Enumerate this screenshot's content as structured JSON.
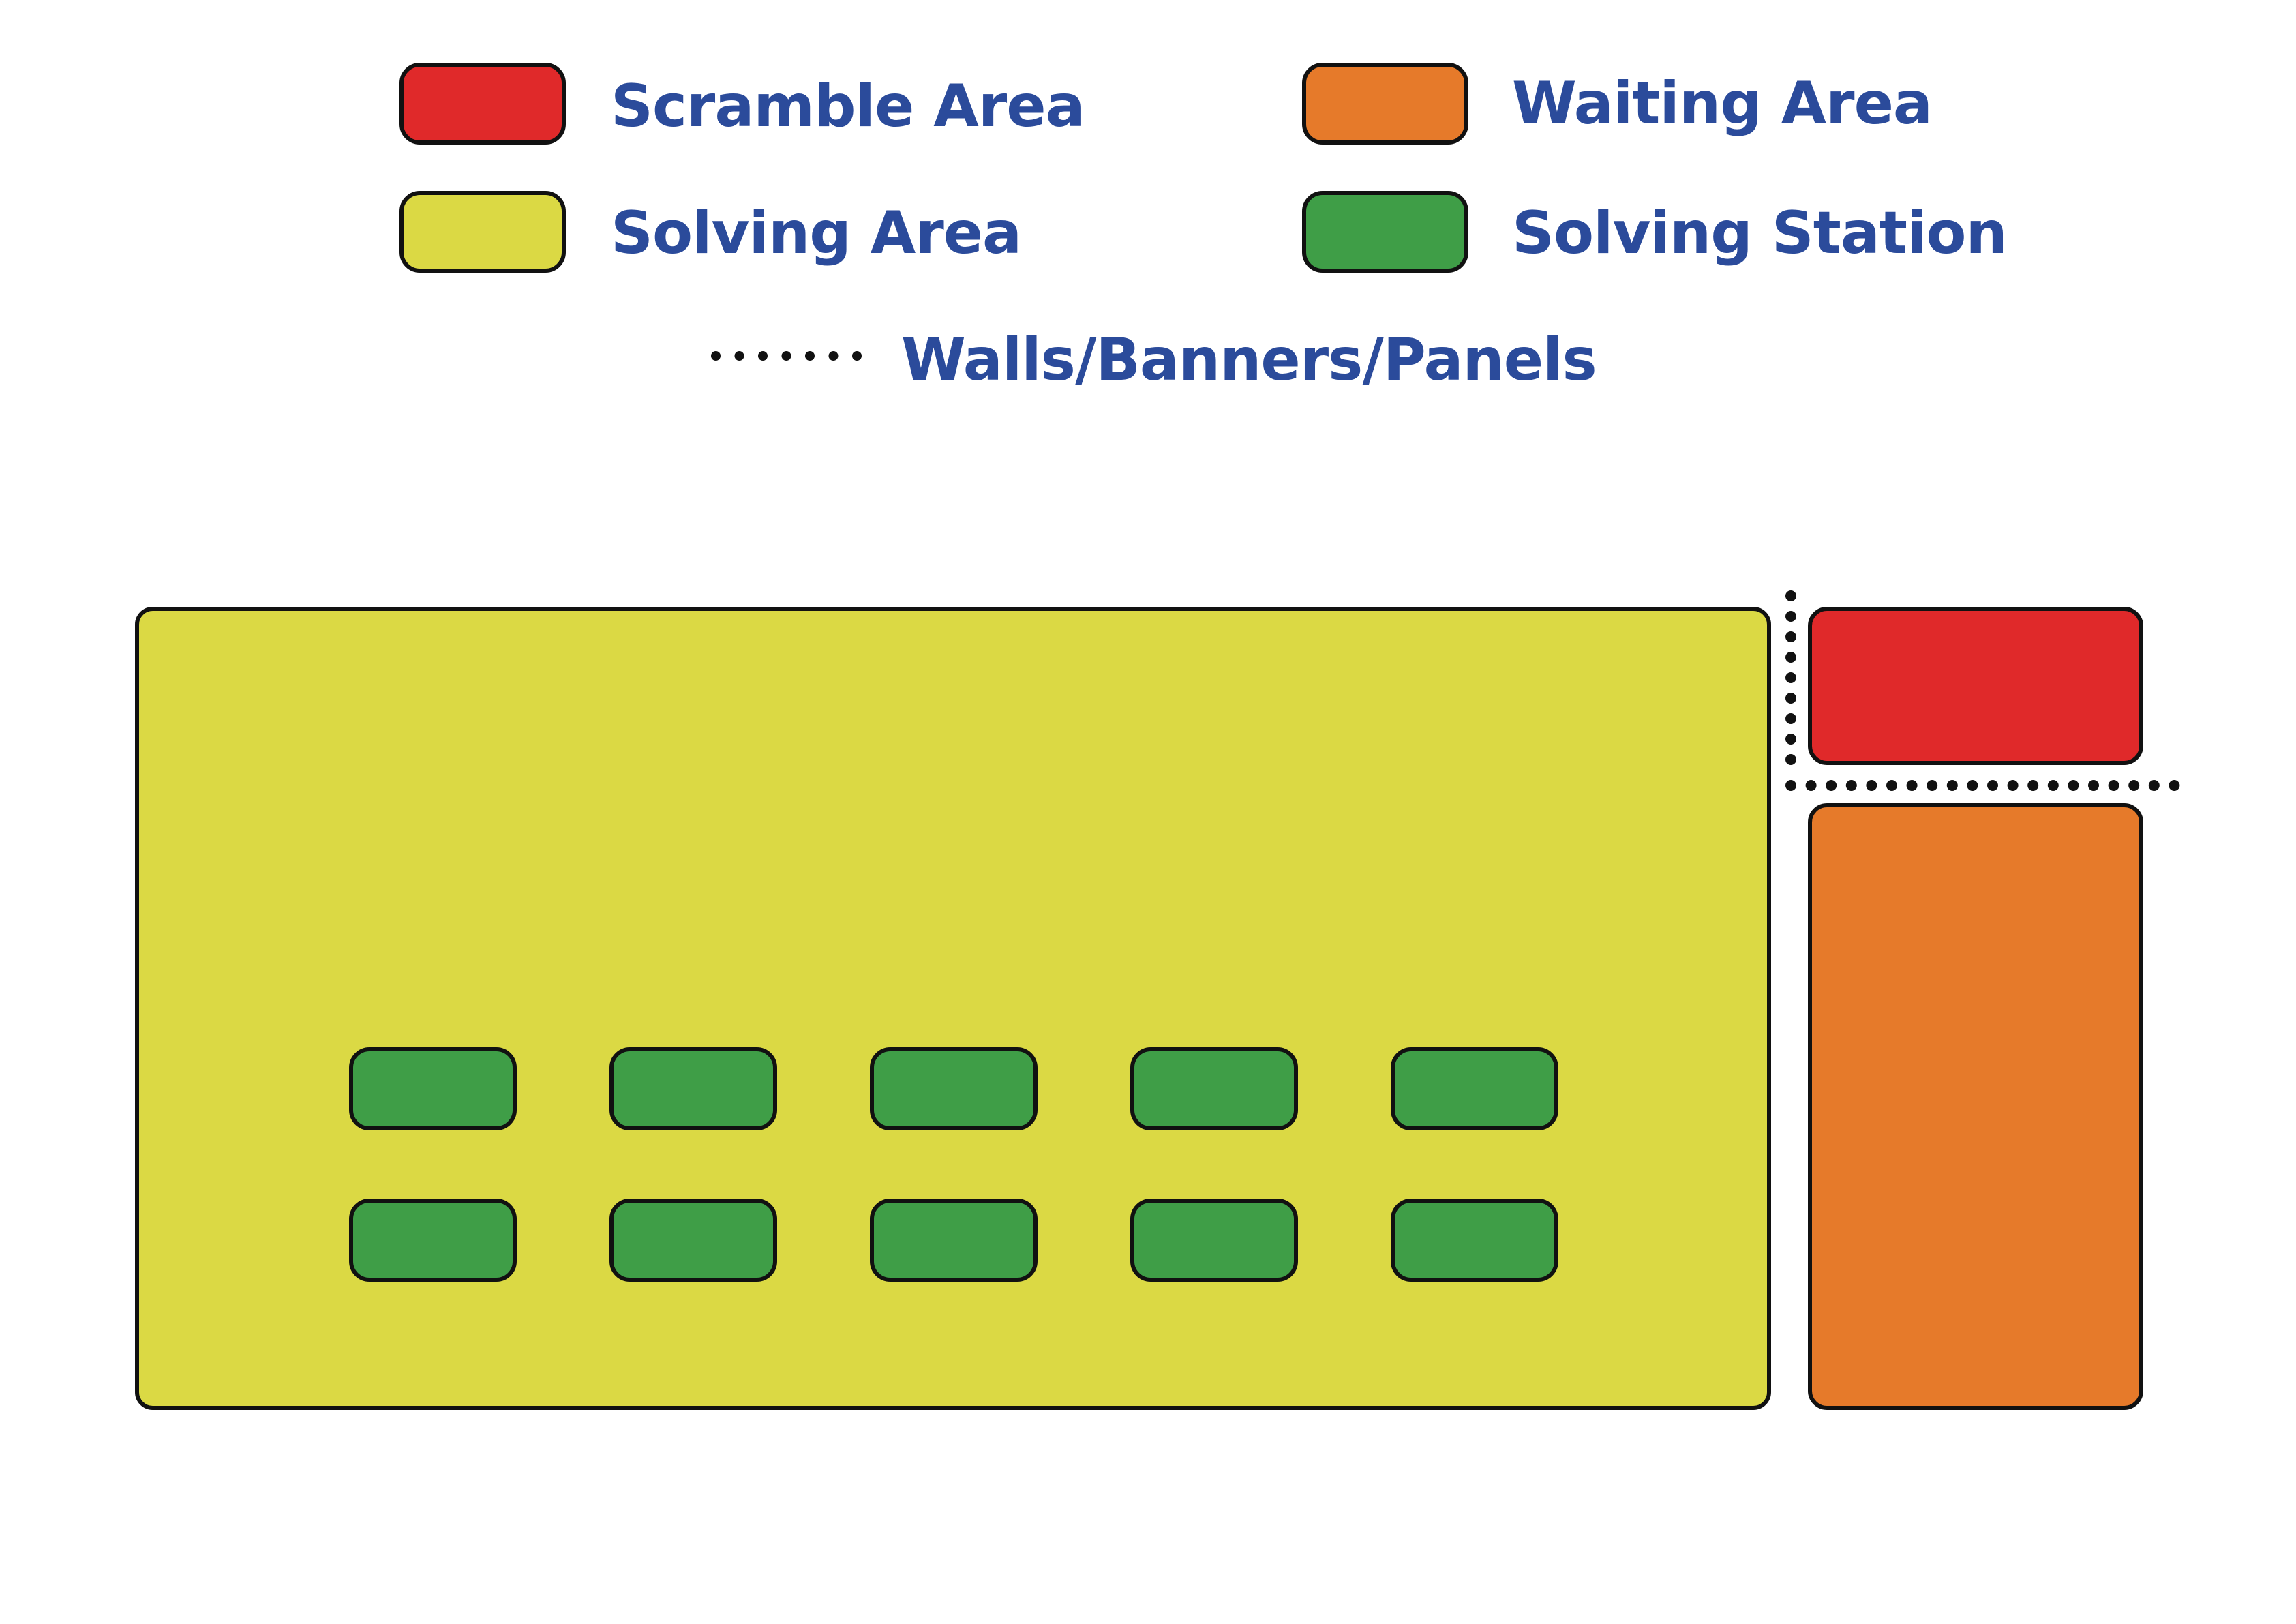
{
  "colors": {
    "scramble": "#e0292a",
    "waiting": "#e67a2a",
    "solving_area": "#dbd944",
    "solving_station": "#3f9e47",
    "outline": "#111111",
    "label_text": "#2b4b9b",
    "wall_dots": "#111111"
  },
  "legend": {
    "scramble_area": "Scramble Area",
    "waiting_area": "Waiting Area",
    "solving_area": "Solving Area",
    "solving_station": "Solving Station",
    "walls": "Walls/Banners/Panels"
  },
  "layout": {
    "station_rows": 2,
    "stations_per_row": 5
  }
}
